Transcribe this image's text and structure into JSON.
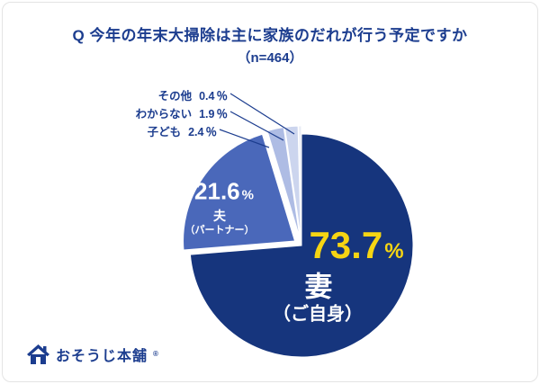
{
  "header": {
    "title": "Q 今年の年末大掃除は主に家族のだれが行う予定ですか",
    "sample": "（n=464）"
  },
  "pie": {
    "wife": {
      "value": "73.7",
      "unit": "%",
      "name": "妻",
      "sub": "（ご自身）"
    },
    "husband": {
      "value": "21.6",
      "unit": "%",
      "name": "夫",
      "sub": "（パートナー）"
    },
    "callouts": [
      {
        "label": "その他",
        "value": "0.4",
        "unit": "％"
      },
      {
        "label": "わからない",
        "value": "1.9",
        "unit": "％"
      },
      {
        "label": "子ども",
        "value": "2.4",
        "unit": "％"
      }
    ]
  },
  "logo": {
    "text": "おそうじ本舗",
    "mark": "®"
  },
  "colors": {
    "navy": "#1c3d8f",
    "yellow": "#f6d513",
    "slice_wife": "#16357d",
    "slice_husband": "#4a68ba",
    "slice_child": "#aebce4",
    "slice_unknown": "#ccd5ee",
    "slice_other": "#e8ebf5"
  },
  "chart_data": {
    "type": "pie",
    "title": "Q 今年の年末大掃除は主に家族のだれが行う予定ですか",
    "subtitle": "（n=464）",
    "start_angle_deg": -90,
    "direction": "clockwise",
    "slices": [
      {
        "label": "妻（ご自身）",
        "value": 73.7,
        "color": "#16357d",
        "exploded": false
      },
      {
        "label": "夫（パートナー）",
        "value": 21.6,
        "color": "#4a68ba",
        "exploded": true
      },
      {
        "label": "子ども",
        "value": 2.4,
        "color": "#aebce4",
        "exploded": true
      },
      {
        "label": "わからない",
        "value": 1.9,
        "color": "#ccd5ee",
        "exploded": true
      },
      {
        "label": "その他",
        "value": 0.4,
        "color": "#e8ebf5",
        "exploded": true
      }
    ]
  }
}
